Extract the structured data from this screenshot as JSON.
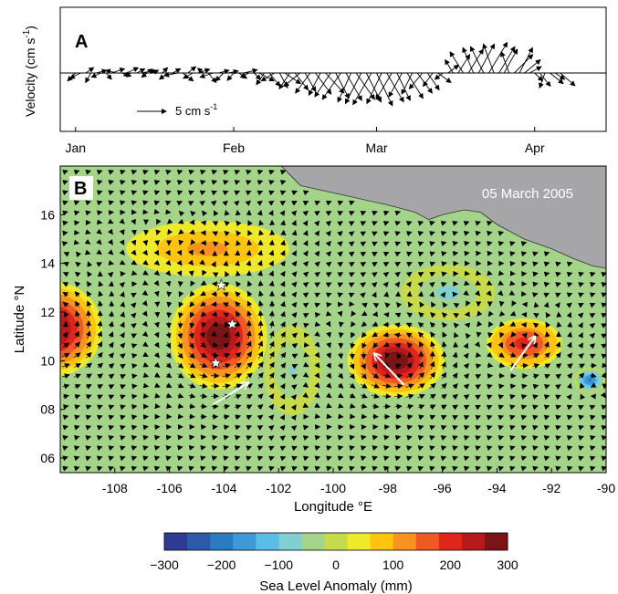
{
  "panel_a": {
    "label": "A",
    "ylabel": "Velocity (cm s",
    "ylabel_sup": "-1",
    "ylabel_end": ")",
    "scale_text": "5 cm s",
    "scale_sup": "-1",
    "scale_value": 5
  },
  "panel_b": {
    "label": "B",
    "date": "05 March 2005",
    "xlabel": "Longitude °E",
    "ylabel": "Latitude °N",
    "colorbar_label": "Sea Level Anomaly (mm)"
  },
  "colors": {
    "land": "#a6a6a8",
    "colormap": [
      "#2f3a93",
      "#2c5aa8",
      "#2a7bc1",
      "#3e9ad6",
      "#59bde8",
      "#7fcfd3",
      "#a3d48a",
      "#c6da4b",
      "#eee92a",
      "#fec40f",
      "#f7931e",
      "#ef5a24",
      "#e0251c",
      "#b71a1c",
      "#7a1416"
    ]
  },
  "chart_data": [
    {
      "type": "vector",
      "title": "",
      "x": [
        "Jan",
        "Feb",
        "Mar",
        "Apr"
      ],
      "xticks": [
        "Jan",
        "Feb",
        "Mar",
        "Apr"
      ],
      "xlim_day": [
        -3,
        104
      ],
      "tick_days": [
        0,
        31,
        59,
        90
      ],
      "ylabel": "Velocity (cm s-1)",
      "vectors": [
        {
          "day": 0,
          "u": -1.5,
          "v": -1.5
        },
        {
          "day": 1,
          "u": -2,
          "v": -1
        },
        {
          "day": 2,
          "u": 1.5,
          "v": 1
        },
        {
          "day": 3,
          "u": -1,
          "v": -1.8
        },
        {
          "day": 4,
          "u": 2,
          "v": 0.5
        },
        {
          "day": 5,
          "u": -1.8,
          "v": -0.8
        },
        {
          "day": 6,
          "u": 1,
          "v": -1.2
        },
        {
          "day": 7,
          "u": 2.5,
          "v": 0.8
        },
        {
          "day": 8,
          "u": -2,
          "v": 0.5
        },
        {
          "day": 9,
          "u": 1.8,
          "v": -0.6
        },
        {
          "day": 10,
          "u": 2.2,
          "v": 1
        },
        {
          "day": 11,
          "u": -1.5,
          "v": -0.5
        },
        {
          "day": 12,
          "u": 1.5,
          "v": 0.8
        },
        {
          "day": 13,
          "u": 2.5,
          "v": 0.5
        },
        {
          "day": 14,
          "u": -1,
          "v": -0.8
        },
        {
          "day": 15,
          "u": 1.2,
          "v": 0.5
        },
        {
          "day": 16,
          "u": -1.8,
          "v": 0.6
        },
        {
          "day": 17,
          "u": 1,
          "v": 1
        },
        {
          "day": 18,
          "u": -1.5,
          "v": -1.2
        },
        {
          "day": 19,
          "u": 1.5,
          "v": 0.8
        },
        {
          "day": 20,
          "u": -2.5,
          "v": -0.5
        },
        {
          "day": 21,
          "u": 2,
          "v": -1.5
        },
        {
          "day": 22,
          "u": 1.5,
          "v": 1.2
        },
        {
          "day": 23,
          "u": -1.8,
          "v": -1
        },
        {
          "day": 24,
          "u": 2.2,
          "v": 0.7
        },
        {
          "day": 25,
          "u": -1,
          "v": 0.9
        },
        {
          "day": 26,
          "u": 1.5,
          "v": -1.8
        },
        {
          "day": 27,
          "u": -2.5,
          "v": -0.8
        },
        {
          "day": 28,
          "u": 2,
          "v": 0.5
        },
        {
          "day": 29,
          "u": -1.5,
          "v": -1.5
        },
        {
          "day": 30,
          "u": 1.8,
          "v": 0.4
        },
        {
          "day": 31,
          "u": -1.2,
          "v": -1.4
        },
        {
          "day": 32,
          "u": 1.5,
          "v": -1
        },
        {
          "day": 33,
          "u": 2.5,
          "v": 0.6
        },
        {
          "day": 34,
          "u": -1.6,
          "v": -0.8
        },
        {
          "day": 35,
          "u": 1.2,
          "v": -1.2
        },
        {
          "day": 36,
          "u": 2.8,
          "v": -1.5
        },
        {
          "day": 37,
          "u": -1.5,
          "v": -2.2
        },
        {
          "day": 38,
          "u": 2,
          "v": -2.5
        },
        {
          "day": 39,
          "u": -2.5,
          "v": -1.5
        },
        {
          "day": 40,
          "u": 1.5,
          "v": -2.8
        },
        {
          "day": 41,
          "u": 3,
          "v": -2
        },
        {
          "day": 42,
          "u": -2,
          "v": -3
        },
        {
          "day": 43,
          "u": 2.5,
          "v": -3.2
        },
        {
          "day": 44,
          "u": -3,
          "v": -2.5
        },
        {
          "day": 45,
          "u": 2,
          "v": -3.5
        },
        {
          "day": 46,
          "u": -2.8,
          "v": -3.8
        },
        {
          "day": 47,
          "u": 3,
          "v": -4
        },
        {
          "day": 48,
          "u": -2.2,
          "v": -4.2
        },
        {
          "day": 49,
          "u": 3.5,
          "v": -3.8
        },
        {
          "day": 50,
          "u": -3,
          "v": -4.5
        },
        {
          "day": 51,
          "u": 2.5,
          "v": -4.8
        },
        {
          "day": 52,
          "u": -3.5,
          "v": -5
        },
        {
          "day": 53,
          "u": 3,
          "v": -5.2
        },
        {
          "day": 54,
          "u": -2.5,
          "v": -5.5
        },
        {
          "day": 55,
          "u": 3.5,
          "v": -5
        },
        {
          "day": 56,
          "u": -3,
          "v": -5.8
        },
        {
          "day": 57,
          "u": 2.8,
          "v": -5.5
        },
        {
          "day": 58,
          "u": -3.5,
          "v": -6
        },
        {
          "day": 59,
          "u": 3,
          "v": -6.2
        },
        {
          "day": 60,
          "u": -2.8,
          "v": -5.8
        },
        {
          "day": 61,
          "u": 3.2,
          "v": -5.5
        },
        {
          "day": 62,
          "u": -3,
          "v": -5
        },
        {
          "day": 63,
          "u": 2.5,
          "v": -5.2
        },
        {
          "day": 64,
          "u": -2.5,
          "v": -4.5
        },
        {
          "day": 65,
          "u": 3,
          "v": -4.8
        },
        {
          "day": 66,
          "u": -2,
          "v": -4
        },
        {
          "day": 67,
          "u": 2.8,
          "v": -3.8
        },
        {
          "day": 68,
          "u": -2.5,
          "v": -3
        },
        {
          "day": 69,
          "u": 2.2,
          "v": -3.2
        },
        {
          "day": 70,
          "u": -1.8,
          "v": -2.5
        },
        {
          "day": 71,
          "u": 2.5,
          "v": -1.8
        },
        {
          "day": 72,
          "u": -1.5,
          "v": -1.2
        },
        {
          "day": 73,
          "u": 2,
          "v": 1.5
        },
        {
          "day": 74,
          "u": -1.5,
          "v": 2.5
        },
        {
          "day": 75,
          "u": 2.2,
          "v": 3.5
        },
        {
          "day": 76,
          "u": -2.5,
          "v": 4
        },
        {
          "day": 77,
          "u": 2.8,
          "v": 4.5
        },
        {
          "day": 78,
          "u": -2,
          "v": 4.8
        },
        {
          "day": 79,
          "u": 3,
          "v": 5.5
        },
        {
          "day": 80,
          "u": -2.5,
          "v": 5
        },
        {
          "day": 81,
          "u": 3.5,
          "v": 5.8
        },
        {
          "day": 82,
          "u": -2,
          "v": 5.5
        },
        {
          "day": 83,
          "u": 3,
          "v": 5
        },
        {
          "day": 84,
          "u": 2.5,
          "v": 4.5
        },
        {
          "day": 85,
          "u": -1.5,
          "v": 4
        },
        {
          "day": 86,
          "u": 3.5,
          "v": 3.5
        },
        {
          "day": 87,
          "u": 2.5,
          "v": 4.8
        },
        {
          "day": 88,
          "u": 3,
          "v": 2.5
        },
        {
          "day": 89,
          "u": 2.2,
          "v": 1.2
        },
        {
          "day": 90,
          "u": 1.5,
          "v": -1.5
        },
        {
          "day": 91,
          "u": 2,
          "v": -2.5
        },
        {
          "day": 92,
          "u": -1,
          "v": -2.8
        },
        {
          "day": 93,
          "u": 2.5,
          "v": -2
        },
        {
          "day": 94,
          "u": 1.8,
          "v": -1.2
        },
        {
          "day": 95,
          "u": 2.8,
          "v": -2.4
        }
      ]
    },
    {
      "type": "heatmap",
      "title": "05 March 2005",
      "xlabel": "Longitude °E",
      "ylabel": "Latitude °N",
      "xlim": [
        -110,
        -90
      ],
      "ylim": [
        5.4,
        18
      ],
      "xticks": [
        -108,
        -106,
        -104,
        -102,
        -100,
        -98,
        -96,
        -94,
        -92,
        -90
      ],
      "yticks": [
        6,
        8,
        10,
        12,
        14,
        16
      ],
      "ytick_labels": [
        "06",
        "08",
        "10",
        "12",
        "14",
        "16"
      ],
      "colorbar": {
        "label": "Sea Level Anomaly (mm)",
        "range": [
          -300,
          300
        ],
        "ticks": [
          -300,
          -200,
          -100,
          0,
          100,
          200,
          300
        ],
        "tick_labels": [
          "−300",
          "−200",
          "−100",
          "0",
          "100",
          "200",
          "300"
        ],
        "levels": 15
      },
      "eddies": [
        {
          "lon": -110.3,
          "lat": 11.3,
          "rx": 1.6,
          "ry": 1.7,
          "sla": 290
        },
        {
          "lon": -104.2,
          "lat": 11.0,
          "rx": 1.55,
          "ry": 1.9,
          "sla": 300
        },
        {
          "lon": -97.7,
          "lat": 10.0,
          "rx": 1.55,
          "ry": 1.3,
          "sla": 310
        },
        {
          "lon": -93.0,
          "lat": 10.7,
          "rx": 1.2,
          "ry": 0.9,
          "sla": 215
        },
        {
          "lon": -104.6,
          "lat": 14.6,
          "rx": 2.6,
          "ry": 1.0,
          "sla": 120
        },
        {
          "lon": -101.5,
          "lat": 9.6,
          "rx": 0.9,
          "ry": 1.6,
          "sla": -70
        },
        {
          "lon": -95.8,
          "lat": 12.8,
          "rx": 1.5,
          "ry": 1.0,
          "sla": -80
        },
        {
          "lon": -90.6,
          "lat": 9.2,
          "rx": 0.5,
          "ry": 0.45,
          "sla": -200
        }
      ],
      "stars": [
        {
          "lon": -104.1,
          "lat": 13.1
        },
        {
          "lon": -103.7,
          "lat": 11.5
        },
        {
          "lon": -104.3,
          "lat": 9.9
        }
      ],
      "drift_arrows": [
        {
          "lon1": -104.4,
          "lat1": 8.2,
          "lon2": -103.1,
          "lat2": 9.1
        },
        {
          "lon1": -97.4,
          "lat1": 9.0,
          "lon2": -98.5,
          "lat2": 10.3
        },
        {
          "lon1": -93.5,
          "lat1": 9.6,
          "lon2": -92.6,
          "lat2": 11.0
        }
      ]
    }
  ]
}
